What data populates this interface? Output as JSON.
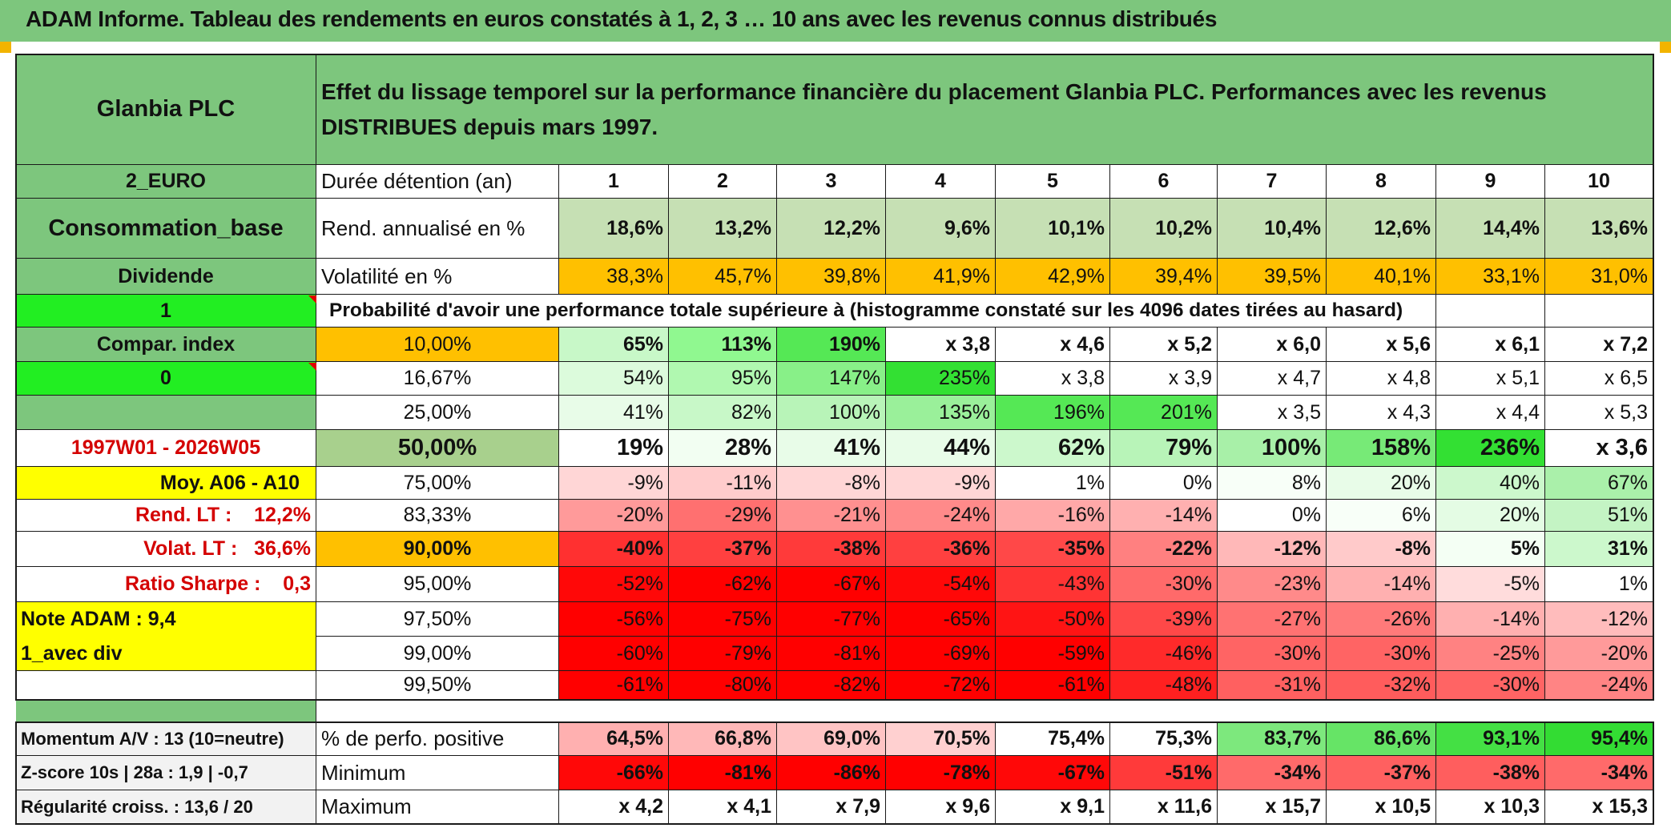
{
  "title": "ADAM Informe. Tableau des rendements en euros constatés à 1, 2, 3 … 10 ans avec les revenus connus distribués",
  "left_panel": {
    "name": "Glanbia PLC",
    "currency": "2_EURO",
    "sector": "Consommation_base",
    "dividend_label": "Dividende",
    "dividend_value": "1",
    "compar_index": "Compar. index",
    "compar_value": "0",
    "period": "1997W01 - 2026W05",
    "avg_label": "Moy. A06 - A10",
    "rend_lt": "Rend. LT :    12,2%",
    "volat_lt": "Volat. LT :   36,6%",
    "sharpe": "Ratio Sharpe :    0,3",
    "note": "Note ADAM : 9,4",
    "mode": "1_avec div",
    "momentum": "Momentum A/V : 13 (10=neutre)",
    "zscore": "Z-score 10s | 28a : 1,9 | -0,7",
    "regularite": "Régularité croiss. : 13,6 / 20"
  },
  "header": {
    "description": "Effet du lissage temporel sur la performance financière du placement Glanbia PLC. Performances avec les revenus DISTRIBUES depuis mars 1997.",
    "duree_label": "Durée détention (an)",
    "years": [
      "1",
      "2",
      "3",
      "4",
      "5",
      "6",
      "7",
      "8",
      "9",
      "10"
    ]
  },
  "rend_row": {
    "label": "Rend. annualisé en %",
    "values": [
      "18,6%",
      "13,2%",
      "12,2%",
      "9,6%",
      "10,1%",
      "10,2%",
      "10,4%",
      "12,6%",
      "14,4%",
      "13,6%"
    ]
  },
  "vol_row": {
    "label": "Volatilité en %",
    "values": [
      "38,3%",
      "45,7%",
      "39,8%",
      "41,9%",
      "42,9%",
      "39,4%",
      "39,5%",
      "40,1%",
      "33,1%",
      "31,0%"
    ]
  },
  "prob_label": "Probabilité d'avoir une performance totale supérieure à (histogramme constaté sur les 4096 dates tirées au hasard)",
  "prob_rows": [
    {
      "pct": "10,00%",
      "values": [
        "65%",
        "113%",
        "190%",
        "x 3,8",
        "x 4,6",
        "x 5,2",
        "x 6,0",
        "x 5,6",
        "x 6,1",
        "x 7,2"
      ]
    },
    {
      "pct": "16,67%",
      "values": [
        "54%",
        "95%",
        "147%",
        "235%",
        "x 3,8",
        "x 3,9",
        "x 4,7",
        "x 4,8",
        "x 5,1",
        "x 6,5"
      ]
    },
    {
      "pct": "25,00%",
      "values": [
        "41%",
        "82%",
        "100%",
        "135%",
        "196%",
        "201%",
        "x 3,5",
        "x 4,3",
        "x 4,4",
        "x 5,3"
      ]
    },
    {
      "pct": "50,00%",
      "values": [
        "19%",
        "28%",
        "41%",
        "44%",
        "62%",
        "79%",
        "100%",
        "158%",
        "236%",
        "x 3,6"
      ]
    },
    {
      "pct": "75,00%",
      "values": [
        "-9%",
        "-11%",
        "-8%",
        "-9%",
        "1%",
        "0%",
        "8%",
        "20%",
        "40%",
        "67%"
      ]
    },
    {
      "pct": "83,33%",
      "values": [
        "-20%",
        "-29%",
        "-21%",
        "-24%",
        "-16%",
        "-14%",
        "0%",
        "6%",
        "20%",
        "51%"
      ]
    },
    {
      "pct": "90,00%",
      "values": [
        "-40%",
        "-37%",
        "-38%",
        "-36%",
        "-35%",
        "-22%",
        "-12%",
        "-8%",
        "5%",
        "31%"
      ]
    },
    {
      "pct": "95,00%",
      "values": [
        "-52%",
        "-62%",
        "-67%",
        "-54%",
        "-43%",
        "-30%",
        "-23%",
        "-14%",
        "-5%",
        "1%"
      ]
    },
    {
      "pct": "97,50%",
      "values": [
        "-56%",
        "-75%",
        "-77%",
        "-65%",
        "-50%",
        "-39%",
        "-27%",
        "-26%",
        "-14%",
        "-12%"
      ]
    },
    {
      "pct": "99,00%",
      "values": [
        "-60%",
        "-79%",
        "-81%",
        "-69%",
        "-59%",
        "-46%",
        "-30%",
        "-30%",
        "-25%",
        "-20%"
      ]
    },
    {
      "pct": "99,50%",
      "values": [
        "-61%",
        "-80%",
        "-82%",
        "-72%",
        "-61%",
        "-48%",
        "-31%",
        "-32%",
        "-30%",
        "-24%"
      ]
    }
  ],
  "bottom_rows": [
    {
      "label": "% de perfo. positive",
      "values": [
        "64,5%",
        "66,8%",
        "69,0%",
        "70,5%",
        "75,4%",
        "75,3%",
        "83,7%",
        "86,6%",
        "93,1%",
        "95,4%"
      ]
    },
    {
      "label": "Minimum",
      "values": [
        "-66%",
        "-81%",
        "-86%",
        "-78%",
        "-67%",
        "-51%",
        "-34%",
        "-37%",
        "-38%",
        "-34%"
      ]
    },
    {
      "label": "Maximum",
      "values": [
        "x 4,2",
        "x 4,1",
        "x 7,9",
        "x 9,6",
        "x 9,1",
        "x 11,6",
        "x 15,7",
        "x 10,5",
        "x 10,3",
        "x 15,3"
      ]
    }
  ],
  "colors": {
    "header_green": "#7dc67d",
    "bright_green": "#22ee22",
    "yellow": "#ffff00",
    "orange": "#ffc000",
    "red": "#d40000"
  },
  "cell_colors": {
    "rend": [
      "#c6e0b4",
      "#c6e0b4",
      "#c6e0b4",
      "#c6e0b4",
      "#c6e0b4",
      "#c6e0b4",
      "#c6e0b4",
      "#c6e0b4",
      "#c6e0b4",
      "#c6e0b4"
    ],
    "vol": [
      "#ffc000",
      "#ffc000",
      "#ffc000",
      "#ffc000",
      "#ffc000",
      "#ffc000",
      "#ffc000",
      "#ffc000",
      "#ffc000",
      "#ffc000"
    ],
    "prob": [
      [
        "#c8f8c8",
        "#90f890",
        "#55e855",
        "#ffffff",
        "#ffffff",
        "#ffffff",
        "#ffffff",
        "#ffffff",
        "#ffffff",
        "#ffffff"
      ],
      [
        "#dcfbdc",
        "#b0f8b0",
        "#88f088",
        "#33e033",
        "#ffffff",
        "#ffffff",
        "#ffffff",
        "#ffffff",
        "#ffffff",
        "#ffffff"
      ],
      [
        "#e8fce8",
        "#c8f8c8",
        "#b8f4b8",
        "#9af09a",
        "#55e855",
        "#55e855",
        "#ffffff",
        "#ffffff",
        "#ffffff",
        "#ffffff"
      ],
      [
        "#ffffff",
        "#f2fef2",
        "#e8fce8",
        "#e8fce8",
        "#ccf8cc",
        "#b8f4b8",
        "#a8f0a8",
        "#77ea77",
        "#33e033",
        "#ffffff"
      ],
      [
        "#ffd6d6",
        "#ffcccc",
        "#ffd6d6",
        "#ffd6d6",
        "#ffffff",
        "#ffffff",
        "#f8fff8",
        "#e8fce8",
        "#ccf8cc",
        "#aaf0aa"
      ],
      [
        "#ff9a9a",
        "#ff7070",
        "#ff9090",
        "#ff8a8a",
        "#ffa8a8",
        "#ffb0b0",
        "#ffffff",
        "#f8fff8",
        "#e4fce4",
        "#c4f4c4"
      ],
      [
        "#ff3030",
        "#ff4040",
        "#ff3a3a",
        "#ff4040",
        "#ff4848",
        "#ff8080",
        "#ffb8b8",
        "#ffcaca",
        "#f4fff4",
        "#ccf8cc"
      ],
      [
        "#ff0808",
        "#ff0000",
        "#ff0000",
        "#ff0808",
        "#ff3434",
        "#ff6a6a",
        "#ff8a8a",
        "#ffb0b0",
        "#ffdcdc",
        "#ffffff"
      ],
      [
        "#ff0000",
        "#ff0000",
        "#ff0000",
        "#ff0000",
        "#ff1414",
        "#ff4848",
        "#ff7272",
        "#ff7a7a",
        "#ffb0b0",
        "#ffbcbc"
      ],
      [
        "#ff0000",
        "#ff0000",
        "#ff0000",
        "#ff0000",
        "#ff0000",
        "#ff2a2a",
        "#ff6464",
        "#ff6464",
        "#ff8282",
        "#ff9a9a"
      ],
      [
        "#ff0000",
        "#ff0000",
        "#ff0000",
        "#ff0000",
        "#ff0000",
        "#ff2020",
        "#ff6060",
        "#ff5c5c",
        "#ff6464",
        "#ff8484"
      ]
    ],
    "bottom": [
      [
        "#ffb0b0",
        "#ffb8b8",
        "#ffc4c4",
        "#ffd0d0",
        "#ffffff",
        "#ffffff",
        "#7de87d",
        "#66e466",
        "#44e044",
        "#33dc33"
      ],
      [
        "#ff0808",
        "#ff0000",
        "#ff0000",
        "#ff0000",
        "#ff0808",
        "#ff3a3a",
        "#ff6a6a",
        "#ff6060",
        "#ff5e5e",
        "#ff6a6a"
      ],
      [
        "#ffffff",
        "#ffffff",
        "#ffffff",
        "#ffffff",
        "#ffffff",
        "#ffffff",
        "#ffffff",
        "#ffffff",
        "#ffffff",
        "#ffffff"
      ]
    ]
  }
}
